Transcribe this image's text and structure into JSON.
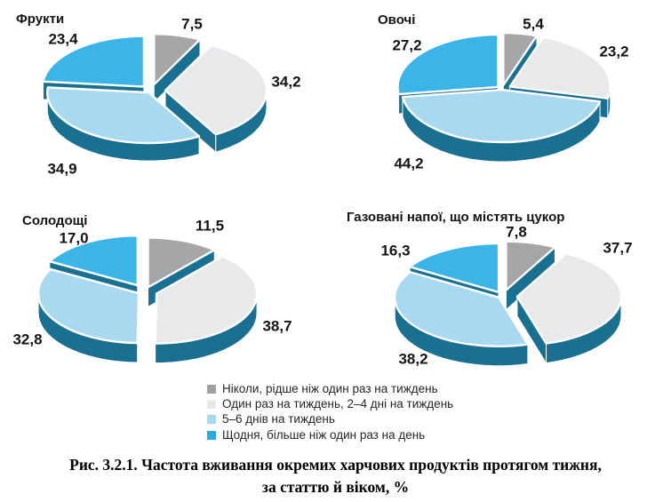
{
  "figure": {
    "caption_line1": "Рис. 3.2.1. Частота вживання окремих харчових продуктів протягом тижня,",
    "caption_line2": "за статтю й віком, %"
  },
  "legend": {
    "position": "bottom",
    "items": [
      {
        "name": "never",
        "label": "Ніколи, рідше ніж один раз на тиждень",
        "color": "#9ea0a3"
      },
      {
        "name": "once-a-week",
        "label": "Один раз на тиждень, 2–4 дні на тиждень",
        "color": "#e8e9ea"
      },
      {
        "name": "5-6-days",
        "label": "5–6 днів на тиждень",
        "color": "#a8d9f0"
      },
      {
        "name": "daily",
        "label": "Щодня, більше ніж один раз на день",
        "color": "#2caade"
      }
    ]
  },
  "chart_data": [
    {
      "type": "pie",
      "title": "Фрукти",
      "unit": "%",
      "categories": [
        "Ніколи, рідше ніж один раз на тиждень",
        "Один раз на тиждень, 2–4 дні на тиждень",
        "5–6 днів на тиждень",
        "Щодня, більше ніж один раз на день"
      ],
      "values": [
        7.5,
        34.2,
        34.9,
        23.4
      ],
      "colors": [
        "#a4a6a8",
        "#e8e9ea",
        "#a9d9f0",
        "#3bb4e8"
      ],
      "depth_color": "#1a7090",
      "start_angle_deg": 0,
      "direction": "clockwise"
    },
    {
      "type": "pie",
      "title": "Овочі",
      "unit": "%",
      "categories": [
        "Ніколи, рідше ніж один раз на тиждень",
        "Один раз на тиждень, 2–4 дні на тиждень",
        "5–6 днів на тиждень",
        "Щодня, більше ніж один раз на день"
      ],
      "values": [
        5.4,
        23.2,
        44.2,
        27.2
      ],
      "colors": [
        "#a4a6a8",
        "#e8e9ea",
        "#a9d9f0",
        "#3bb4e8"
      ],
      "depth_color": "#1a7090",
      "start_angle_deg": 0,
      "direction": "clockwise"
    },
    {
      "type": "pie",
      "title": "Солодощі",
      "unit": "%",
      "categories": [
        "Ніколи, рідше ніж один раз на тиждень",
        "Один раз на тиждень, 2–4 дні на тиждень",
        "5–6 днів на тиждень",
        "Щодня, більше ніж один раз на день"
      ],
      "values": [
        11.5,
        38.7,
        32.8,
        17.0
      ],
      "colors": [
        "#a4a6a8",
        "#e8e9ea",
        "#a9d9f0",
        "#3bb4e8"
      ],
      "depth_color": "#1a7090",
      "start_angle_deg": 0,
      "direction": "clockwise"
    },
    {
      "type": "pie",
      "title": "Газовані напої, що містять цукор",
      "unit": "%",
      "categories": [
        "Ніколи, рідше ніж один раз на тиждень",
        "Один раз на тиждень, 2–4 дні на тиждень",
        "5–6 днів на тиждень",
        "Щодня, більше ніж один раз на день"
      ],
      "values": [
        7.8,
        37.7,
        38.2,
        16.3
      ],
      "colors": [
        "#a4a6a8",
        "#e8e9ea",
        "#a9d9f0",
        "#3bb4e8"
      ],
      "depth_color": "#1a7090",
      "start_angle_deg": 0,
      "direction": "clockwise"
    }
  ]
}
